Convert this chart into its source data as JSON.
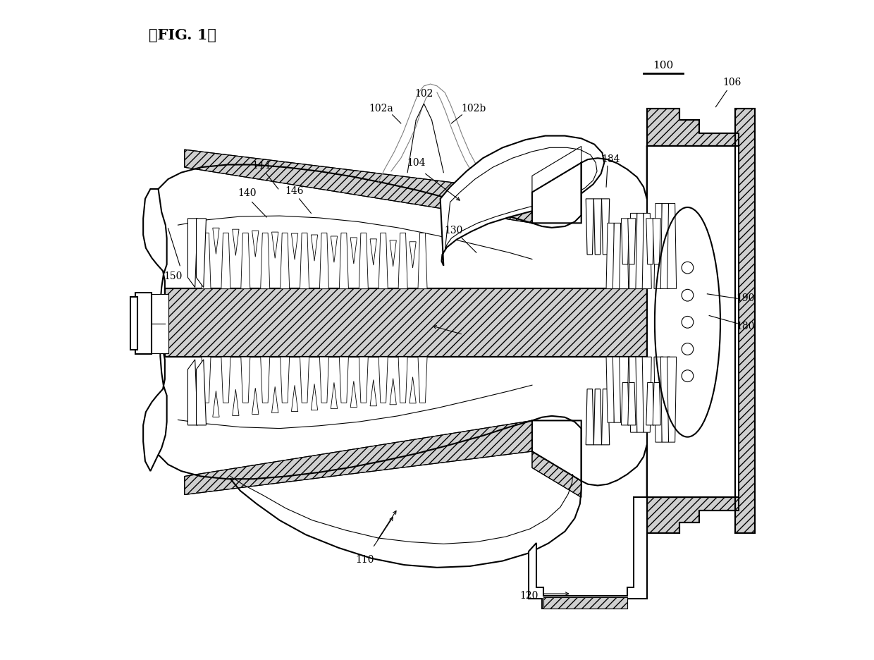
{
  "title": "』FIG. 1『",
  "bg_color": "#ffffff",
  "line_color": "#000000",
  "figsize": [
    12.4,
    9.36
  ],
  "dpi": 100,
  "lw_main": 1.5,
  "lw_thin": 0.8
}
